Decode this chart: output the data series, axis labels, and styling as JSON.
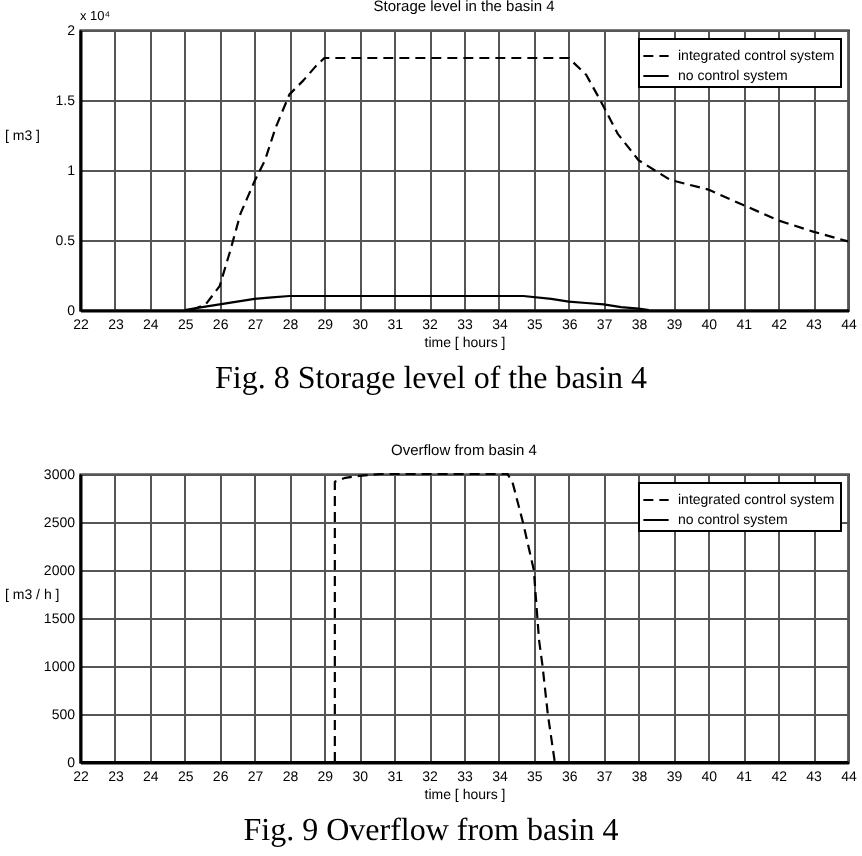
{
  "chart_data": [
    {
      "type": "line",
      "title": "Storage level in the basin 4",
      "xlabel": "time [ hours ]",
      "ylabel": "[ m3 ]",
      "annotations": [
        "x 10⁴",
        "Fig. 8 Storage level of the basin 4"
      ],
      "xlim": [
        22,
        44
      ],
      "xticks": [
        22,
        23,
        24,
        25,
        26,
        27,
        28,
        29,
        30,
        31,
        32,
        33,
        34,
        35,
        36,
        37,
        38,
        39,
        40,
        41,
        42,
        43,
        44
      ],
      "ylim": [
        0,
        2
      ],
      "yticks": [
        0,
        0.5,
        1,
        1.5,
        2
      ],
      "grid": true,
      "legend": "top right",
      "series": [
        {
          "name": "integrated control system",
          "color": "#000000",
          "line_style": "dashed",
          "x": [
            25.2,
            25.6,
            26,
            26.3,
            26.6,
            27,
            27.3,
            27.6,
            28,
            28.4,
            28.75,
            29,
            36,
            36.5,
            36.9,
            37.4,
            38,
            38.9,
            40,
            41,
            42,
            43,
            44
          ],
          "values": [
            0,
            0.04,
            0.17,
            0.42,
            0.69,
            0.92,
            1.07,
            1.3,
            1.54,
            1.64,
            1.74,
            1.8,
            1.8,
            1.68,
            1.5,
            1.26,
            1.07,
            0.93,
            0.86,
            0.75,
            0.64,
            0.56,
            0.49
          ]
        },
        {
          "name": "no control system",
          "color": "#000000",
          "line_style": "solid",
          "x": [
            25,
            25.5,
            26,
            26.5,
            27,
            27.5,
            28,
            34.7,
            35.5,
            36,
            36.5,
            37,
            37.5,
            38,
            38.3
          ],
          "values": [
            0,
            0.02,
            0.04,
            0.06,
            0.08,
            0.09,
            0.1,
            0.1,
            0.08,
            0.06,
            0.05,
            0.04,
            0.02,
            0.01,
            0
          ]
        }
      ]
    },
    {
      "type": "line",
      "title": "Overflow from basin 4",
      "xlabel": "time [ hours ]",
      "ylabel": "[ m3 / h ]",
      "annotations": [
        "Fig. 9 Overflow from basin 4"
      ],
      "xlim": [
        22,
        44
      ],
      "xticks": [
        22,
        23,
        24,
        25,
        26,
        27,
        28,
        29,
        30,
        31,
        32,
        33,
        34,
        35,
        36,
        37,
        38,
        39,
        40,
        41,
        42,
        43,
        44
      ],
      "ylim": [
        0,
        3000
      ],
      "yticks": [
        0,
        500,
        1000,
        1500,
        2000,
        2500,
        3000
      ],
      "grid": true,
      "legend": "top right",
      "series": [
        {
          "name": "integrated control system",
          "color": "#000000",
          "line_style": "dashed",
          "x": [
            29.3,
            29.3,
            29.6,
            30,
            30.6,
            34.25,
            34.4,
            34.7,
            35,
            35.15,
            35.25,
            35.4,
            35.6
          ],
          "values": [
            0,
            2920,
            2960,
            2980,
            3000,
            3000,
            2900,
            2480,
            2000,
            1270,
            1000,
            500,
            0
          ]
        },
        {
          "name": "no control system",
          "color": "#000000",
          "line_style": "solid",
          "x": [
            22,
            44
          ],
          "values": [
            0,
            0
          ]
        }
      ]
    }
  ]
}
